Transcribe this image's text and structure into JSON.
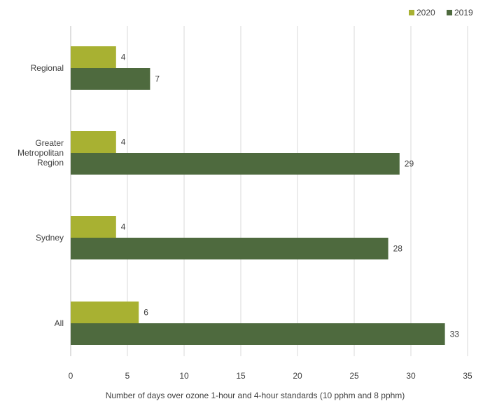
{
  "chart_data": {
    "type": "bar",
    "orientation": "horizontal",
    "categories": [
      "Regional",
      "Greater Metropolitan Region",
      "Sydney",
      "All"
    ],
    "category_lines": [
      [
        "Regional"
      ],
      [
        "Greater",
        "Metropolitan",
        "Region"
      ],
      [
        "Sydney"
      ],
      [
        "All"
      ]
    ],
    "series": [
      {
        "name": "2020",
        "color": "#a8b132",
        "values": [
          4,
          4,
          4,
          6
        ]
      },
      {
        "name": "2019",
        "color": "#4e6a3e",
        "values": [
          7,
          29,
          28,
          33
        ]
      }
    ],
    "xlabel": "Number  of days over ozone  1-hour and 4-hour standards (10 pphm  and 8 pphm)",
    "ylabel": "",
    "xlim": [
      0,
      35
    ],
    "xticks": [
      0,
      5,
      10,
      15,
      20,
      25,
      30,
      35
    ],
    "grid": true,
    "legend_position": "top-right",
    "gridline_color": "#d9d9d9"
  }
}
